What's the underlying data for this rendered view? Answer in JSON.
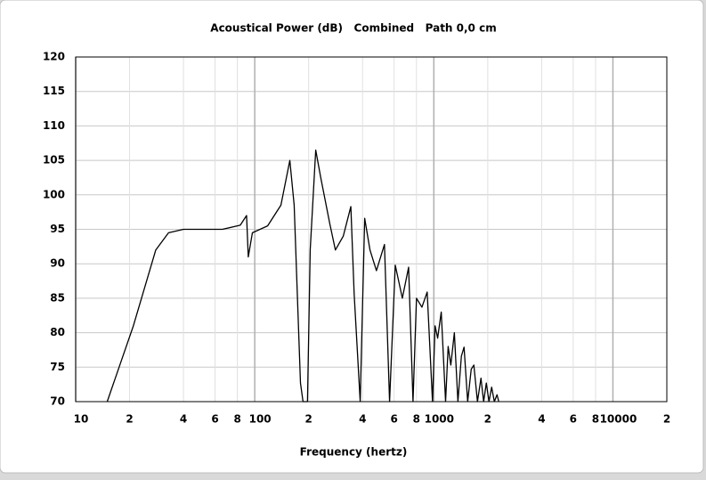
{
  "chart_data": {
    "type": "line",
    "title": "Acoustical Power (dB)   Combined   Path 0,0 cm",
    "x_label": "Frequency (hertz)",
    "x": [
      15,
      21,
      28,
      33,
      40,
      66,
      83,
      90,
      92,
      97,
      118,
      140,
      157,
      166,
      180,
      186,
      197,
      204,
      219,
      234,
      263,
      282,
      312,
      344,
      359,
      388,
      411,
      440,
      478,
      530,
      566,
      609,
      667,
      723,
      765,
      800,
      858,
      918,
      983,
      1016,
      1050,
      1100,
      1163,
      1202,
      1244,
      1302,
      1363,
      1425,
      1475,
      1545,
      1617,
      1673,
      1752,
      1833,
      1897,
      1964,
      2032,
      2103,
      2177,
      2253,
      2305
    ],
    "values": [
      70,
      81,
      92,
      94.5,
      95,
      95,
      95.6,
      97,
      91,
      94.5,
      95.5,
      98.5,
      105,
      98.5,
      72.7,
      70,
      70,
      92,
      106.5,
      102.4,
      95.7,
      92,
      94,
      98.3,
      85.6,
      70,
      96.6,
      92,
      89,
      92.8,
      70,
      89.8,
      85,
      89.5,
      70,
      85,
      83.7,
      85.9,
      70,
      81,
      79.2,
      83,
      70,
      78,
      75.3,
      80,
      70,
      76.6,
      77.9,
      70,
      74.7,
      75.3,
      70,
      73.4,
      70,
      72.7,
      70,
      72.1,
      70,
      71,
      70
    ],
    "color": "#000000",
    "xscale": "log",
    "xlim": [
      10,
      20000
    ],
    "xticks": [
      10,
      {
        "value": 20,
        "label": "2"
      },
      {
        "value": 40,
        "label": "4"
      },
      {
        "value": 60,
        "label": "6"
      },
      {
        "value": 80,
        "label": "8"
      },
      100,
      {
        "value": 200,
        "label": "2"
      },
      {
        "value": 400,
        "label": "4"
      },
      {
        "value": 600,
        "label": "6"
      },
      {
        "value": 800,
        "label": "8"
      },
      1000,
      {
        "value": 2000,
        "label": "2"
      },
      {
        "value": 4000,
        "label": "4"
      },
      {
        "value": 6000,
        "label": "6"
      },
      {
        "value": 8000,
        "label": "8"
      },
      10000,
      {
        "value": 20000,
        "label": "2"
      }
    ],
    "ylim": [
      70,
      120
    ],
    "yticks": [
      70,
      75,
      80,
      85,
      90,
      95,
      100,
      105,
      110,
      115,
      120
    ],
    "grid": true
  }
}
